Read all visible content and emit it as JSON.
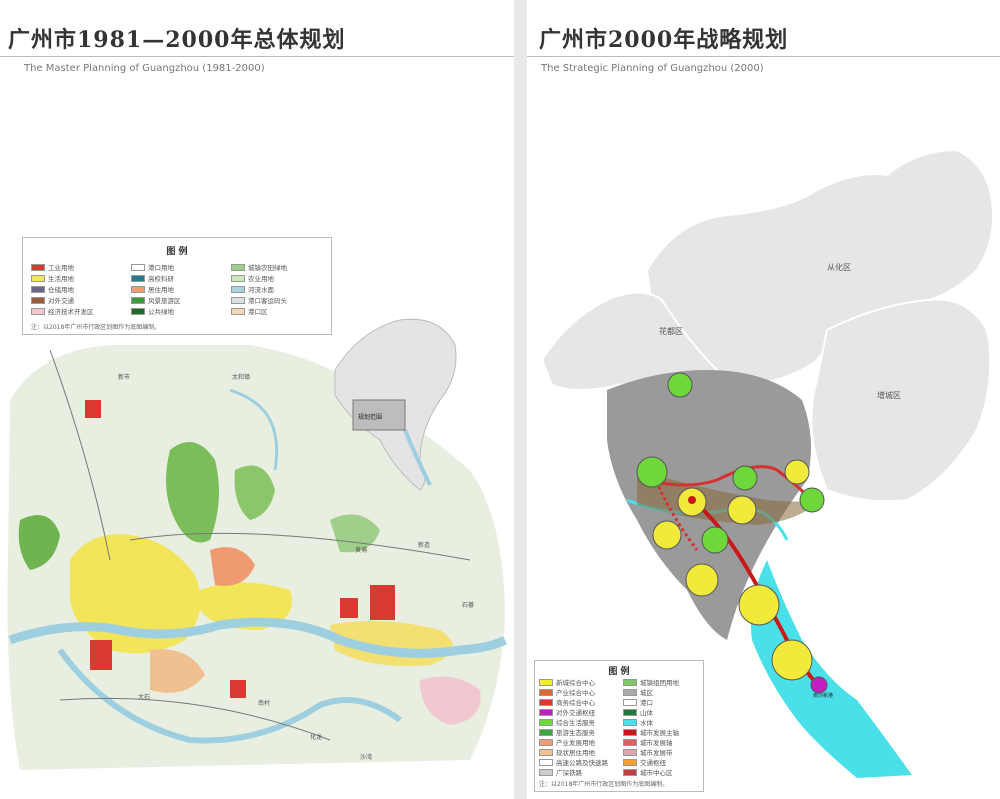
{
  "left_panel": {
    "title": "广州市1981—2000年总体规划",
    "subtitle": "The Master Planning of Guangzhou (1981-2000)",
    "legend": {
      "title": "图 例",
      "items": [
        {
          "label": "工业用地",
          "color": "#d83a32"
        },
        {
          "label": "生活用地",
          "color": "#f2e55a"
        },
        {
          "label": "仓储用地",
          "color": "#6e6888"
        },
        {
          "label": "对外交通",
          "color": "#9a5c3c"
        },
        {
          "label": "经济技术开发区",
          "color": "#f2c8d0"
        },
        {
          "label": "港口用地",
          "color": "#ffffff"
        },
        {
          "label": "高校科研",
          "color": "#2a7a8a"
        },
        {
          "label": "居住用地",
          "color": "#ef9a70"
        },
        {
          "label": "风景旅游区",
          "color": "#3e9a3a"
        },
        {
          "label": "公共绿地",
          "color": "#1f6a2a"
        },
        {
          "label": "城镇农田绿地",
          "color": "#9fcf8a"
        },
        {
          "label": "农业用地",
          "color": "#cde8b8"
        },
        {
          "label": "河流水面",
          "color": "#a8d2dc"
        },
        {
          "label": "港口客运码头",
          "color": "#d8e0e4"
        },
        {
          "label": "港口区",
          "color": "#f3d7b5"
        }
      ],
      "note": "注：以2018年广州市行政区划图作为底图编制。"
    },
    "inset_label": "规划范围",
    "place_labels": [
      "新市",
      "太和镇",
      "黄埔",
      "新造",
      "石碁",
      "大石",
      "南村",
      "化龙",
      "沙湾"
    ]
  },
  "right_panel": {
    "title": "广州市2000年战略规划",
    "subtitle": "The Strategic Planning of Guangzhou (2000)",
    "district_labels": [
      "从化区",
      "花都区",
      "增城区"
    ],
    "node_labels": [
      "南沙新港"
    ],
    "legend": {
      "title": "图 例",
      "items": [
        {
          "label": "新城综合中心",
          "color": "#f2ea3a"
        },
        {
          "label": "产业综合中心",
          "color": "#e06a2a"
        },
        {
          "label": "商务综合中心",
          "color": "#d83a32"
        },
        {
          "label": "对外交通枢纽",
          "color": "#c020c0"
        },
        {
          "label": "综合生活服务",
          "color": "#6ed83a"
        },
        {
          "label": "旅游生态服务",
          "color": "#3aa83a"
        },
        {
          "label": "产业发展用地",
          "color": "#ef9a70"
        },
        {
          "label": "现状居住用地",
          "color": "#f0c090"
        },
        {
          "label": "高速公路及快速路",
          "color": "#ffffff"
        },
        {
          "label": "广深铁路",
          "color": "#cccccc"
        },
        {
          "label": "城镇组团用地",
          "color": "#7ec86a"
        },
        {
          "label": "城区",
          "color": "#aaaaaa"
        },
        {
          "label": "港口",
          "color": "#ffffff"
        },
        {
          "label": "山体",
          "color": "#1f7a3a"
        },
        {
          "label": "水体",
          "color": "#4ae0ea"
        },
        {
          "label": "城市发展主轴",
          "color": "#c81818"
        },
        {
          "label": "城市发展轴",
          "color": "#e06060"
        },
        {
          "label": "城市发展带",
          "color": "#d8aab0"
        },
        {
          "label": "交通枢纽",
          "color": "#f0a030"
        },
        {
          "label": "城市中心区",
          "color": "#c04040"
        }
      ],
      "note": "注：以2018年广州市行政区划图作为底图编制。"
    }
  }
}
